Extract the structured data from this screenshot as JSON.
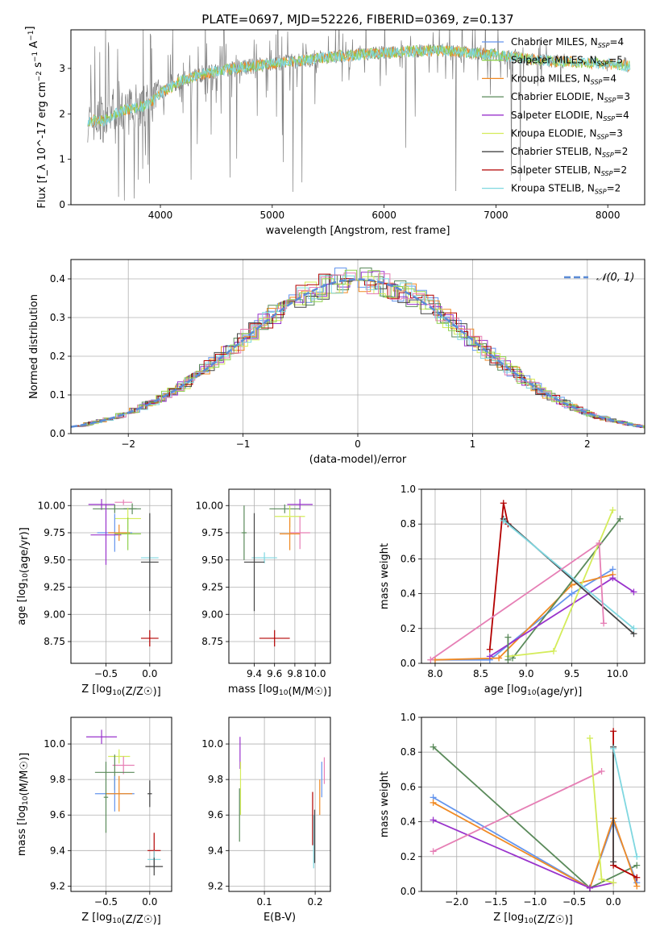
{
  "figure": {
    "title": "PLATE=0697, MJD=52226, FIBERID=0369, z=0.137"
  },
  "colors": {
    "c0": "#6495ed",
    "c1": "#8fd14f",
    "c2": "#f08a24",
    "c3": "#5a8a5a",
    "c4": "#9933cc",
    "c5": "#d4ec5a",
    "c6": "#444444",
    "c7": "#b30000",
    "c8": "#7fd7e0",
    "c9": "#e67fb5",
    "data": "#808080",
    "gaussian": "#5b8bd6"
  },
  "chart_data": [
    {
      "id": "spectrum",
      "type": "line",
      "title": "PLATE=0697, MJD=52226, FIBERID=0369, z=0.137",
      "xlabel": "wavelength [Angstrom, rest frame]",
      "ylabel": "Flux [f_λ 10^-17 erg cm^-2 s^-1 A^-1]",
      "xlim": [
        3200,
        8330
      ],
      "ylim": [
        0,
        3.85
      ],
      "xticks": [
        4000,
        5000,
        6000,
        7000,
        8000
      ],
      "yticks": [
        0,
        1,
        2,
        3
      ],
      "legend_position": "top-right",
      "legend": [
        {
          "label": "Chabrier MILES, N_SSP=4",
          "color": "c0"
        },
        {
          "label": "Salpeter MILES, N_SSP=5",
          "color": "c1"
        },
        {
          "label": "Kroupa MILES, N_SSP=4",
          "color": "c2"
        },
        {
          "label": "Chabrier ELODIE, N_SSP=3",
          "color": "c3"
        },
        {
          "label": "Salpeter ELODIE, N_SSP=4",
          "color": "c4"
        },
        {
          "label": "Kroupa ELODIE, N_SSP=3",
          "color": "c5"
        },
        {
          "label": "Chabrier STELIB, N_SSP=2",
          "color": "c6"
        },
        {
          "label": "Salpeter STELIB, N_SSP=2",
          "color": "c7"
        },
        {
          "label": "Kroupa STELIB, N_SSP=2",
          "color": "c8"
        }
      ],
      "continuum": [
        [
          3350,
          1.85
        ],
        [
          3500,
          1.85
        ],
        [
          3600,
          2.0
        ],
        [
          3700,
          2.1
        ],
        [
          3900,
          2.2
        ],
        [
          4000,
          2.45
        ],
        [
          4200,
          2.75
        ],
        [
          4500,
          2.95
        ],
        [
          5000,
          3.1
        ],
        [
          5500,
          3.25
        ],
        [
          6000,
          3.35
        ],
        [
          6500,
          3.4
        ],
        [
          7000,
          3.3
        ],
        [
          7300,
          3.2
        ],
        [
          7600,
          3.15
        ],
        [
          8000,
          3.1
        ],
        [
          8200,
          3.05
        ]
      ]
    },
    {
      "id": "residuals",
      "type": "line",
      "xlabel": "(data-model)/error",
      "ylabel": "Normed distribution",
      "xlim": [
        -2.5,
        2.5
      ],
      "ylim": [
        0,
        0.45
      ],
      "xticks": [
        -2,
        -1,
        0,
        1,
        2
      ],
      "yticks": [
        0.0,
        0.1,
        0.2,
        0.3,
        0.4
      ],
      "legend": [
        {
          "label": "N(0,1)",
          "color": "gaussian"
        }
      ],
      "legend_position": "top-right"
    },
    {
      "id": "age_vs_Z",
      "type": "scatter",
      "xlabel": "Z [log10(Z/Z☉)]",
      "ylabel": "age  [log10(age/yr)]",
      "xlim": [
        -0.9,
        0.25
      ],
      "ylim": [
        8.55,
        10.15
      ],
      "xticks": [
        -0.5,
        0.0
      ],
      "yticks": [
        8.75,
        9.0,
        9.25,
        9.5,
        9.75,
        10.0
      ],
      "points": [
        {
          "x": -0.55,
          "y": 10.01,
          "xe": 0.3,
          "ye": 0.1,
          "color": "c4"
        },
        {
          "x": -0.4,
          "y": 9.97,
          "xe": 0.5,
          "ye": 0.08,
          "color": "c3"
        },
        {
          "x": -0.2,
          "y": 9.97,
          "xe": 0.2,
          "ye": 0.1,
          "color": "c3"
        },
        {
          "x": -0.3,
          "y": 10.03,
          "xe": 0.2,
          "ye": 0.05,
          "color": "c9"
        },
        {
          "x": -0.25,
          "y": 9.88,
          "xe": 0.3,
          "ye": 0.2,
          "color": "c5"
        },
        {
          "x": -0.4,
          "y": 9.75,
          "xe": 0.4,
          "ye": 0.35,
          "color": "c0"
        },
        {
          "x": -0.5,
          "y": 9.73,
          "xe": 0.35,
          "ye": 0.55,
          "color": "c4"
        },
        {
          "x": -0.35,
          "y": 9.75,
          "xe": 0.25,
          "ye": 0.15,
          "color": "c2"
        },
        {
          "x": -0.25,
          "y": 9.74,
          "xe": 0.3,
          "ye": 0.3,
          "color": "c1"
        },
        {
          "x": 0.0,
          "y": 9.52,
          "xe": 0.2,
          "ye": 0.1,
          "color": "c8"
        },
        {
          "x": 0.0,
          "y": 9.48,
          "xe": 0.2,
          "ye": 0.9,
          "color": "c6"
        },
        {
          "x": 0.0,
          "y": 8.78,
          "xe": 0.2,
          "ye": 0.15,
          "color": "c7"
        }
      ]
    },
    {
      "id": "age_vs_mass",
      "type": "scatter",
      "xlabel": "mass [log10(M/M☉)]",
      "ylabel": "",
      "xlim": [
        9.15,
        10.15
      ],
      "ylim": [
        8.55,
        10.15
      ],
      "xticks": [
        9.4,
        9.6,
        9.8,
        10.0
      ],
      "yticks": [
        8.75,
        9.0,
        9.25,
        9.5,
        9.75,
        10.0
      ],
      "points": [
        {
          "x": 9.85,
          "y": 10.01,
          "xe": 0.25,
          "ye": 0.1,
          "color": "c4"
        },
        {
          "x": 9.7,
          "y": 9.97,
          "xe": 0.3,
          "ye": 0.08,
          "color": "c3"
        },
        {
          "x": 9.75,
          "y": 9.9,
          "xe": 0.3,
          "ye": 0.2,
          "color": "c5"
        },
        {
          "x": 9.85,
          "y": 9.75,
          "xe": 0.2,
          "ye": 0.3,
          "color": "c9"
        },
        {
          "x": 9.75,
          "y": 9.74,
          "xe": 0.2,
          "ye": 0.3,
          "color": "c2"
        },
        {
          "x": 9.5,
          "y": 9.52,
          "xe": 0.25,
          "ye": 0.1,
          "color": "c8"
        },
        {
          "x": 9.4,
          "y": 9.48,
          "xe": 0.2,
          "ye": 0.9,
          "color": "c6"
        },
        {
          "x": 9.6,
          "y": 8.78,
          "xe": 0.3,
          "ye": 0.15,
          "color": "c7"
        },
        {
          "x": 9.3,
          "y": 9.75,
          "xe": 0.05,
          "ye": 0.5,
          "color": "c3"
        }
      ]
    },
    {
      "id": "weight_vs_age",
      "type": "line",
      "xlabel": "age  [log10(age/yr)]",
      "ylabel": "mass weight",
      "xlim": [
        7.85,
        10.3
      ],
      "ylim": [
        0,
        1.0
      ],
      "xticks": [
        8.0,
        8.5,
        9.0,
        9.5,
        10.0
      ],
      "yticks": [
        0.0,
        0.2,
        0.4,
        0.6,
        0.8,
        1.0
      ],
      "series": [
        {
          "color": "c7",
          "x": [
            8.6,
            8.75,
            8.8
          ],
          "y": [
            0.08,
            0.92,
            0.8
          ]
        },
        {
          "color": "c0",
          "x": [
            8.0,
            8.6,
            9.5,
            9.95
          ],
          "y": [
            0.02,
            0.02,
            0.4,
            0.54
          ]
        },
        {
          "color": "c2",
          "x": [
            8.0,
            8.7,
            9.5,
            9.95
          ],
          "y": [
            0.02,
            0.03,
            0.45,
            0.51
          ]
        },
        {
          "color": "c3",
          "x": [
            8.85,
            10.03
          ],
          "y": [
            0.03,
            0.83
          ]
        },
        {
          "color": "c4",
          "x": [
            8.6,
            9.95,
            10.18
          ],
          "y": [
            0.04,
            0.49,
            0.41
          ]
        },
        {
          "color": "c5",
          "x": [
            8.8,
            9.3,
            9.95
          ],
          "y": [
            0.04,
            0.07,
            0.88
          ]
        },
        {
          "color": "c6",
          "x": [
            8.75,
            10.18
          ],
          "y": [
            0.83,
            0.17
          ]
        },
        {
          "color": "c8",
          "x": [
            8.75,
            10.18
          ],
          "y": [
            0.82,
            0.2
          ]
        },
        {
          "color": "c9",
          "x": [
            7.95,
            9.8,
            9.85
          ],
          "y": [
            0.02,
            0.69,
            0.23
          ]
        },
        {
          "color": "c3",
          "x": [
            8.8,
            8.8
          ],
          "y": [
            0.15,
            0.02
          ]
        }
      ]
    },
    {
      "id": "mass_vs_Z",
      "type": "scatter",
      "xlabel": "Z [log10(Z/Z☉)]",
      "ylabel": "mass [log10(M/M☉)]",
      "xlim": [
        -0.9,
        0.25
      ],
      "ylim": [
        9.17,
        10.15
      ],
      "xticks": [
        -0.5,
        0.0
      ],
      "yticks": [
        9.2,
        9.4,
        9.6,
        9.8,
        10.0
      ],
      "points": [
        {
          "x": -0.55,
          "y": 10.04,
          "xe": 0.35,
          "ye": 0.08,
          "color": "c4"
        },
        {
          "x": -0.35,
          "y": 9.93,
          "xe": 0.25,
          "ye": 0.08,
          "color": "c5"
        },
        {
          "x": -0.3,
          "y": 9.88,
          "xe": 0.25,
          "ye": 0.1,
          "color": "c9"
        },
        {
          "x": -0.4,
          "y": 9.84,
          "xe": 0.45,
          "ye": 0.2,
          "color": "c3"
        },
        {
          "x": -0.4,
          "y": 9.72,
          "xe": 0.45,
          "ye": 0.2,
          "color": "c0"
        },
        {
          "x": -0.35,
          "y": 9.72,
          "xe": 0.3,
          "ye": 0.2,
          "color": "c2"
        },
        {
          "x": 0.0,
          "y": 9.72,
          "xe": 0.05,
          "ye": 0.15,
          "color": "c6"
        },
        {
          "x": 0.05,
          "y": 9.4,
          "xe": 0.15,
          "ye": 0.2,
          "color": "c7"
        },
        {
          "x": 0.05,
          "y": 9.35,
          "xe": 0.15,
          "ye": 0.1,
          "color": "c8"
        },
        {
          "x": 0.05,
          "y": 9.31,
          "xe": 0.2,
          "ye": 0.1,
          "color": "c6"
        },
        {
          "x": -0.5,
          "y": 9.7,
          "xe": 0.05,
          "ye": 0.4,
          "color": "c3"
        }
      ]
    },
    {
      "id": "mass_vs_EBV",
      "type": "scatter",
      "xlabel": "E(B-V)",
      "ylabel": "",
      "xlim": [
        0.03,
        0.23
      ],
      "ylim": [
        9.17,
        10.15
      ],
      "xticks": [
        0.1,
        0.2
      ],
      "yticks": [
        9.2,
        9.4,
        9.6,
        9.8,
        10.0
      ],
      "points": [
        {
          "x": 0.052,
          "y": 9.95,
          "xe": 0,
          "ye": 0.18,
          "color": "c4"
        },
        {
          "x": 0.053,
          "y": 9.75,
          "xe": 0,
          "ye": 0.3,
          "color": "c5"
        },
        {
          "x": 0.051,
          "y": 9.6,
          "xe": 0,
          "ye": 0.3,
          "color": "c3"
        },
        {
          "x": 0.195,
          "y": 9.58,
          "xe": 0,
          "ye": 0.3,
          "color": "c7"
        },
        {
          "x": 0.197,
          "y": 9.45,
          "xe": 0,
          "ye": 0.3,
          "color": "c8"
        },
        {
          "x": 0.199,
          "y": 9.48,
          "xe": 0,
          "ye": 0.3,
          "color": "c6"
        },
        {
          "x": 0.209,
          "y": 9.7,
          "xe": 0,
          "ye": 0.2,
          "color": "c2"
        },
        {
          "x": 0.213,
          "y": 9.8,
          "xe": 0,
          "ye": 0.2,
          "color": "c0"
        },
        {
          "x": 0.218,
          "y": 9.85,
          "xe": 0,
          "ye": 0.15,
          "color": "c9"
        }
      ]
    },
    {
      "id": "weight_vs_Z",
      "type": "line",
      "xlabel": "Z [log10(Z/Z☉)]",
      "ylabel": "mass weight",
      "xlim": [
        -2.45,
        0.4
      ],
      "ylim": [
        0,
        1.0
      ],
      "xticks": [
        -2.0,
        -1.5,
        -1.0,
        -0.5,
        0.0
      ],
      "yticks": [
        0.0,
        0.2,
        0.4,
        0.6,
        0.8,
        1.0
      ],
      "series": [
        {
          "color": "c3",
          "x": [
            -2.3,
            -0.3,
            0.3
          ],
          "y": [
            0.83,
            0.02,
            0.15
          ]
        },
        {
          "color": "c0",
          "x": [
            -2.3,
            -0.3,
            0.0,
            0.3
          ],
          "y": [
            0.54,
            0.02,
            0.4,
            0.05
          ]
        },
        {
          "color": "c2",
          "x": [
            -2.3,
            -0.3,
            0.0,
            0.3
          ],
          "y": [
            0.51,
            0.02,
            0.42,
            0.03
          ]
        },
        {
          "color": "c4",
          "x": [
            -2.3,
            -0.3,
            0.0
          ],
          "y": [
            0.41,
            0.02,
            0.05
          ]
        },
        {
          "color": "c9",
          "x": [
            -2.3,
            -0.15
          ],
          "y": [
            0.23,
            0.69
          ]
        },
        {
          "color": "c5",
          "x": [
            -0.3,
            -0.15,
            0.0
          ],
          "y": [
            0.88,
            0.07,
            0.05
          ]
        },
        {
          "color": "c7",
          "x": [
            0.0,
            0.0,
            0.3
          ],
          "y": [
            0.92,
            0.15,
            0.08
          ]
        },
        {
          "color": "c6",
          "x": [
            0.0,
            0.0
          ],
          "y": [
            0.83,
            0.17
          ]
        },
        {
          "color": "c8",
          "x": [
            0.0,
            0.3
          ],
          "y": [
            0.82,
            0.2
          ]
        }
      ]
    }
  ]
}
